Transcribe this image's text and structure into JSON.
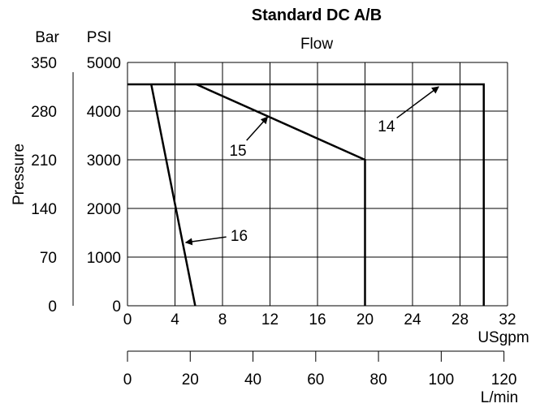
{
  "chart_data": {
    "type": "line",
    "title": "Standard DC A/B",
    "subtitle": "Flow",
    "ylabel": "Pressure",
    "y_unit_bar": "Bar",
    "y_unit_psi": "PSI",
    "x_unit_usgpm": "USgpm",
    "x_unit_lmin": "L/min",
    "x_ticks_usgpm": [
      "0",
      "4",
      "8",
      "12",
      "16",
      "20",
      "24",
      "28",
      "32"
    ],
    "x_ticks_lmin": [
      "0",
      "20",
      "40",
      "60",
      "80",
      "100",
      "120"
    ],
    "y_ticks_psi": [
      "0",
      "1000",
      "2000",
      "3000",
      "4000",
      "5000"
    ],
    "y_ticks_bar": [
      "0",
      "70",
      "140",
      "210",
      "280",
      "350"
    ],
    "xlim": [
      0,
      32
    ],
    "ylim": [
      0,
      5000
    ],
    "grid": true,
    "series": [
      {
        "name": "14",
        "points": [
          [
            0,
            4550
          ],
          [
            30,
            4550
          ],
          [
            30,
            0
          ]
        ]
      },
      {
        "name": "15",
        "points": [
          [
            5.8,
            4550
          ],
          [
            20,
            3000
          ],
          [
            20,
            0
          ]
        ]
      },
      {
        "name": "16",
        "points": [
          [
            2,
            4550
          ],
          [
            5.7,
            0
          ]
        ]
      }
    ],
    "annotations": [
      {
        "text": "14",
        "text_pos": [
          21.8,
          3700
        ],
        "arrow_to": [
          26.2,
          4500
        ]
      },
      {
        "text": "15",
        "text_pos": [
          9.3,
          3200
        ],
        "arrow_to": [
          11.8,
          3880
        ]
      },
      {
        "text": "16",
        "text_pos": [
          9.4,
          1450
        ],
        "arrow_to": [
          4.9,
          1300
        ]
      }
    ]
  }
}
